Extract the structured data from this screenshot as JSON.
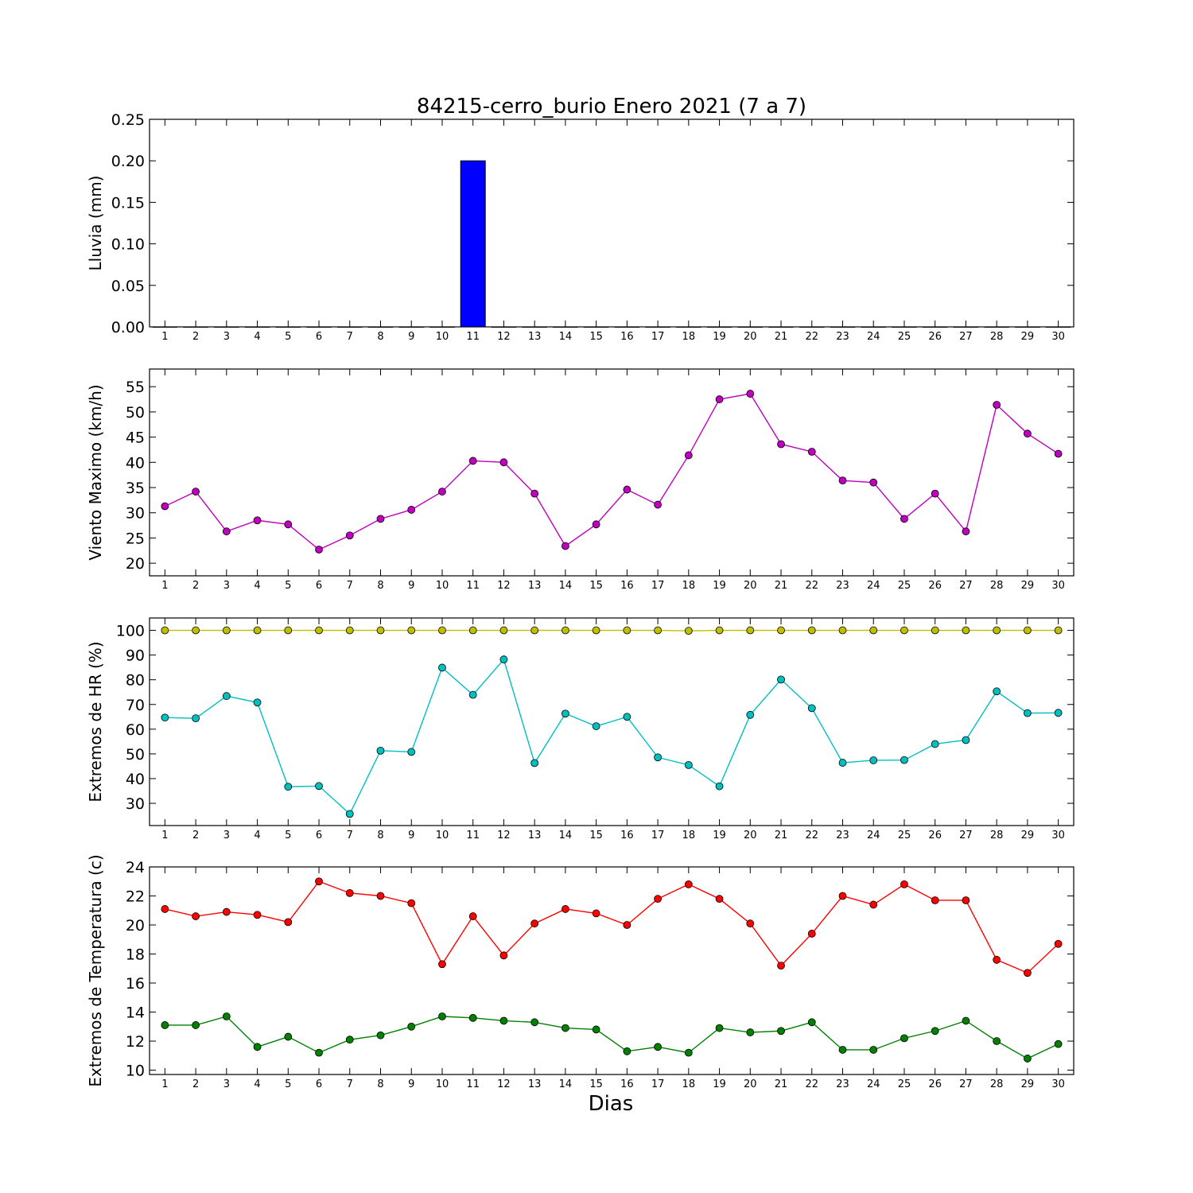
{
  "title": "84215-cerro_burio Enero 2021  (7 a 7)",
  "xlabel": "Dias",
  "chart_data": [
    {
      "type": "bar",
      "ylabel": "Lluvia (mm)",
      "ylim": [
        0,
        0.25
      ],
      "yticks": [
        "0.00",
        "0.05",
        "0.10",
        "0.15",
        "0.20",
        "0.25"
      ],
      "categories": [
        1,
        2,
        3,
        4,
        5,
        6,
        7,
        8,
        9,
        10,
        11,
        12,
        13,
        14,
        15,
        16,
        17,
        18,
        19,
        20,
        21,
        22,
        23,
        24,
        25,
        26,
        27,
        28,
        29,
        30
      ],
      "series": [
        {
          "color": "#0000ff",
          "values": [
            0,
            0,
            0,
            0,
            0,
            0,
            0,
            0,
            0,
            0,
            0.2,
            0,
            0,
            0,
            0,
            0,
            0,
            0,
            0,
            0,
            0,
            0,
            0,
            0,
            0,
            0,
            0,
            0,
            0,
            0
          ]
        }
      ]
    },
    {
      "type": "line",
      "ylabel": "Viento Maximo (km/h)",
      "ylim": [
        17.5,
        58.5
      ],
      "yticks": [
        "20",
        "25",
        "30",
        "35",
        "40",
        "45",
        "50",
        "55"
      ],
      "categories": [
        1,
        2,
        3,
        4,
        5,
        6,
        7,
        8,
        9,
        10,
        11,
        12,
        13,
        14,
        15,
        16,
        17,
        18,
        19,
        20,
        21,
        22,
        23,
        24,
        25,
        26,
        27,
        28,
        29,
        30
      ],
      "series": [
        {
          "color": "#bf00bf",
          "values": [
            31.3,
            34.2,
            26.3,
            28.5,
            27.7,
            22.7,
            25.5,
            28.8,
            30.6,
            34.2,
            40.3,
            40.0,
            33.8,
            23.4,
            27.7,
            34.6,
            31.6,
            41.4,
            52.5,
            53.6,
            43.6,
            42.1,
            36.4,
            36.0,
            28.8,
            33.8,
            26.3,
            51.4,
            45.7,
            41.7
          ]
        }
      ]
    },
    {
      "type": "line",
      "ylabel": "Extremos de HR (%)",
      "ylim": [
        21,
        105
      ],
      "yticks": [
        "30",
        "40",
        "50",
        "60",
        "70",
        "80",
        "90",
        "100"
      ],
      "categories": [
        1,
        2,
        3,
        4,
        5,
        6,
        7,
        8,
        9,
        10,
        11,
        12,
        13,
        14,
        15,
        16,
        17,
        18,
        19,
        20,
        21,
        22,
        23,
        24,
        25,
        26,
        27,
        28,
        29,
        30
      ],
      "series": [
        {
          "color": "#bfbf00",
          "values": [
            100,
            100,
            100,
            100,
            100,
            100,
            100,
            100,
            100,
            100,
            100,
            100,
            100,
            100,
            100,
            100,
            100,
            99.8,
            100,
            100,
            100,
            100,
            100,
            100,
            100,
            100,
            100,
            100,
            100,
            100
          ]
        },
        {
          "color": "#00bfbf",
          "values": [
            64.7,
            64.4,
            73.4,
            70.8,
            36.7,
            37.0,
            25.7,
            51.3,
            50.8,
            84.9,
            73.9,
            88.2,
            46.3,
            66.3,
            61.2,
            65.0,
            48.6,
            45.5,
            36.9,
            65.8,
            80.1,
            68.5,
            46.4,
            47.4,
            47.5,
            54.0,
            55.6,
            75.3,
            66.5,
            66.6
          ]
        }
      ]
    },
    {
      "type": "line",
      "ylabel": "Extremos de Temperatura (c)",
      "ylim": [
        9.7,
        24
      ],
      "yticks": [
        "10",
        "12",
        "14",
        "16",
        "18",
        "20",
        "22",
        "24"
      ],
      "categories": [
        1,
        2,
        3,
        4,
        5,
        6,
        7,
        8,
        9,
        10,
        11,
        12,
        13,
        14,
        15,
        16,
        17,
        18,
        19,
        20,
        21,
        22,
        23,
        24,
        25,
        26,
        27,
        28,
        29,
        30
      ],
      "series": [
        {
          "color": "#ff0000",
          "values": [
            21.1,
            20.6,
            20.9,
            20.7,
            20.2,
            23.0,
            22.2,
            22.0,
            21.5,
            17.3,
            20.6,
            17.9,
            20.1,
            21.1,
            20.8,
            20.0,
            21.8,
            22.8,
            21.8,
            20.1,
            17.2,
            19.4,
            22.0,
            21.4,
            22.8,
            21.7,
            21.7,
            17.6,
            16.7,
            18.7
          ]
        },
        {
          "color": "#008000",
          "values": [
            13.1,
            13.1,
            13.7,
            11.6,
            12.3,
            11.2,
            12.1,
            12.4,
            13.0,
            13.7,
            13.6,
            13.4,
            13.3,
            12.9,
            12.8,
            11.3,
            11.6,
            11.2,
            12.9,
            12.6,
            12.7,
            13.3,
            11.4,
            11.4,
            12.2,
            12.7,
            13.4,
            12.0,
            10.8,
            11.8
          ]
        }
      ]
    }
  ]
}
